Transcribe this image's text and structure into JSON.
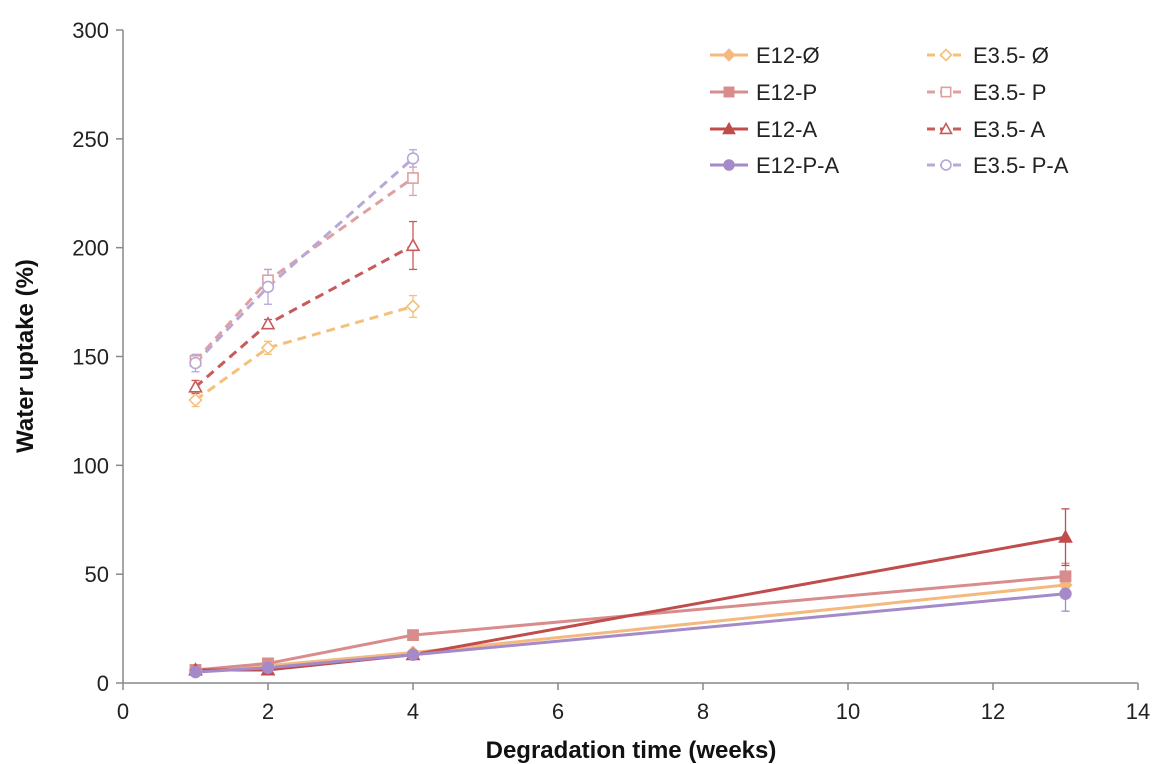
{
  "chart_data": {
    "type": "line",
    "title": "",
    "xlabel": "Degradation time (weeks)",
    "ylabel": "Water uptake (%)",
    "xlim": [
      0,
      14
    ],
    "ylim": [
      0,
      300
    ],
    "xticks": [
      "0",
      "2",
      "4",
      "6",
      "8",
      "10",
      "12",
      "14"
    ],
    "yticks": [
      "0",
      "50",
      "100",
      "150",
      "200",
      "250",
      "300"
    ],
    "grid": false,
    "legend_position": "top-right",
    "series": [
      {
        "name": "E12-Ø",
        "color": "#f5b97f",
        "dashed": false,
        "marker": "diamond",
        "filled": true,
        "x": [
          1,
          2,
          4,
          13
        ],
        "y": [
          6,
          8,
          14,
          45
        ],
        "err": [
          1,
          1,
          1,
          4
        ]
      },
      {
        "name": "E12-P",
        "color": "#d98c8c",
        "dashed": false,
        "marker": "square",
        "filled": true,
        "x": [
          1,
          2,
          4,
          13
        ],
        "y": [
          6,
          9,
          22,
          49
        ],
        "err": [
          1,
          1,
          1,
          6
        ]
      },
      {
        "name": "E12-A",
        "color": "#c04c4c",
        "dashed": false,
        "marker": "triangle",
        "filled": true,
        "x": [
          1,
          2,
          4,
          13
        ],
        "y": [
          6,
          6,
          13,
          67
        ],
        "err": [
          1,
          1,
          1,
          13
        ]
      },
      {
        "name": "E12-P-A",
        "color": "#a48ac8",
        "dashed": false,
        "marker": "circle",
        "filled": true,
        "x": [
          1,
          2,
          4,
          13
        ],
        "y": [
          5,
          7,
          13,
          41
        ],
        "err": [
          1,
          1,
          1,
          8
        ]
      },
      {
        "name": "E3.5- Ø",
        "color": "#f5c07a",
        "dashed": true,
        "marker": "diamond",
        "filled": false,
        "x": [
          1,
          2,
          4
        ],
        "y": [
          130,
          154,
          173
        ],
        "err": [
          3,
          3,
          5
        ]
      },
      {
        "name": "E3.5- P",
        "color": "#e0a0a0",
        "dashed": true,
        "marker": "square",
        "filled": false,
        "x": [
          1,
          2,
          4
        ],
        "y": [
          148,
          185,
          232
        ],
        "err": [
          2,
          5,
          8
        ]
      },
      {
        "name": "E3.5- A",
        "color": "#c85a5a",
        "dashed": true,
        "marker": "triangle",
        "filled": false,
        "x": [
          1,
          2,
          4
        ],
        "y": [
          136,
          165,
          201
        ],
        "err": [
          3,
          2,
          11
        ]
      },
      {
        "name": "E3.5- P-A",
        "color": "#b8a8d8",
        "dashed": true,
        "marker": "circle",
        "filled": false,
        "x": [
          1,
          2,
          4
        ],
        "y": [
          147,
          182,
          241
        ],
        "err": [
          4,
          8,
          4
        ]
      }
    ]
  }
}
